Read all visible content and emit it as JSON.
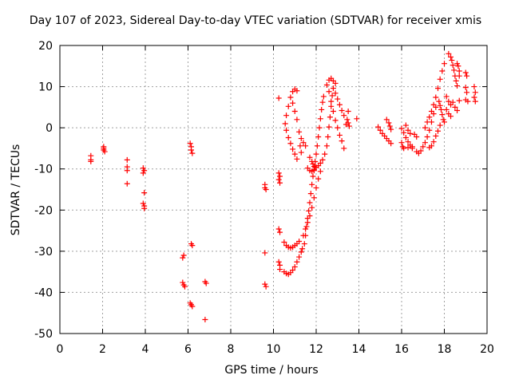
{
  "chart_data": {
    "type": "scatter",
    "title": "Day 107 of 2023, Sidereal Day-to-day VTEC variation (SDTVAR) for receiver xmis",
    "xlabel": "GPS time / hours",
    "ylabel": "SDTVAR / TECUs",
    "xlim": [
      0,
      20
    ],
    "ylim": [
      -50,
      20
    ],
    "xticks": [
      "0",
      "2",
      "4",
      "6",
      "8",
      "10",
      "12",
      "14",
      "16",
      "18",
      "20"
    ],
    "yticks": [
      "-50",
      "-40",
      "-30",
      "-20",
      "-10",
      "0",
      "10",
      "20"
    ],
    "grid": true,
    "marker": "+",
    "color": "#ff0000",
    "series": [
      {
        "name": "SDTVAR",
        "points": [
          [
            1.45,
            -6.8
          ],
          [
            1.45,
            -7.8
          ],
          [
            1.45,
            -8.2
          ],
          [
            2.05,
            -4.6
          ],
          [
            2.05,
            -5.0
          ],
          [
            2.05,
            -5.4
          ],
          [
            2.1,
            -5.8
          ],
          [
            3.15,
            -7.8
          ],
          [
            3.15,
            -9.5
          ],
          [
            3.15,
            -10.4
          ],
          [
            3.15,
            -13.6
          ],
          [
            3.9,
            -9.8
          ],
          [
            3.95,
            -10.4
          ],
          [
            3.9,
            -11.0
          ],
          [
            3.95,
            -15.8
          ],
          [
            3.9,
            -18.4
          ],
          [
            3.95,
            -19.0
          ],
          [
            3.95,
            -19.6
          ],
          [
            5.75,
            -31.6
          ],
          [
            5.8,
            -31.0
          ],
          [
            5.75,
            -37.6
          ],
          [
            5.8,
            -38.2
          ],
          [
            5.85,
            -38.6
          ],
          [
            6.1,
            -3.8
          ],
          [
            6.15,
            -4.6
          ],
          [
            6.15,
            -5.4
          ],
          [
            6.2,
            -6.2
          ],
          [
            6.15,
            -28.2
          ],
          [
            6.2,
            -28.6
          ],
          [
            6.1,
            -42.6
          ],
          [
            6.15,
            -43.0
          ],
          [
            6.2,
            -43.4
          ],
          [
            6.8,
            -37.4
          ],
          [
            6.85,
            -37.8
          ],
          [
            6.8,
            -46.6
          ],
          [
            9.6,
            -13.8
          ],
          [
            9.6,
            -14.6
          ],
          [
            9.65,
            -15.0
          ],
          [
            9.6,
            -30.4
          ],
          [
            9.6,
            -38.0
          ],
          [
            9.65,
            -38.6
          ],
          [
            10.25,
            -11.0
          ],
          [
            10.3,
            -11.8
          ],
          [
            10.25,
            -12.6
          ],
          [
            10.3,
            -13.4
          ],
          [
            10.25,
            7.2
          ],
          [
            10.25,
            -24.6
          ],
          [
            10.3,
            -25.4
          ],
          [
            10.25,
            -32.6
          ],
          [
            10.3,
            -33.4
          ],
          [
            10.3,
            -34.4
          ],
          [
            10.5,
            -35.0
          ],
          [
            10.6,
            -35.4
          ],
          [
            10.7,
            -35.6
          ],
          [
            10.8,
            -35.2
          ],
          [
            10.9,
            -34.6
          ],
          [
            11.0,
            -33.8
          ],
          [
            11.1,
            -32.6
          ],
          [
            11.2,
            -31.4
          ],
          [
            11.3,
            -30.2
          ],
          [
            11.35,
            -29.4
          ],
          [
            10.5,
            -27.8
          ],
          [
            10.6,
            -28.6
          ],
          [
            10.7,
            -29.0
          ],
          [
            10.8,
            -29.2
          ],
          [
            10.9,
            -29.0
          ],
          [
            11.0,
            -28.6
          ],
          [
            11.1,
            -28.2
          ],
          [
            11.2,
            -27.6
          ],
          [
            11.4,
            -26.2
          ],
          [
            11.5,
            -24.6
          ],
          [
            11.6,
            -23.0
          ],
          [
            11.7,
            -21.4
          ],
          [
            11.8,
            -19.4
          ],
          [
            11.9,
            -17.0
          ],
          [
            12.0,
            -14.6
          ],
          [
            12.1,
            -12.4
          ],
          [
            12.2,
            -10.6
          ],
          [
            11.45,
            -28.2
          ],
          [
            11.5,
            -26.2
          ],
          [
            11.55,
            -24.0
          ],
          [
            11.6,
            -22.0
          ],
          [
            11.65,
            -20.2
          ],
          [
            11.7,
            -18.2
          ],
          [
            11.75,
            -16.0
          ],
          [
            11.8,
            -13.8
          ],
          [
            11.85,
            -11.8
          ],
          [
            11.9,
            -10.4
          ],
          [
            11.95,
            -9.6
          ],
          [
            11.95,
            -8.2
          ],
          [
            12.0,
            -6.4
          ],
          [
            12.05,
            -4.4
          ],
          [
            12.1,
            -2.2
          ],
          [
            12.15,
            0.0
          ],
          [
            12.2,
            2.2
          ],
          [
            12.25,
            4.4
          ],
          [
            12.3,
            6.2
          ],
          [
            12.35,
            7.6
          ],
          [
            11.6,
            -9.8
          ],
          [
            11.7,
            -10.4
          ],
          [
            11.8,
            -10.6
          ],
          [
            11.9,
            -10.2
          ],
          [
            12.0,
            -9.6
          ],
          [
            12.1,
            -9.2
          ],
          [
            12.2,
            -8.6
          ],
          [
            12.3,
            -7.8
          ],
          [
            12.4,
            -6.4
          ],
          [
            12.5,
            -4.4
          ],
          [
            12.55,
            -2.2
          ],
          [
            12.6,
            0.2
          ],
          [
            12.65,
            2.6
          ],
          [
            12.7,
            5.2
          ],
          [
            12.75,
            7.8
          ],
          [
            10.55,
            1.0
          ],
          [
            10.6,
            3.0
          ],
          [
            10.7,
            5.2
          ],
          [
            10.8,
            7.4
          ],
          [
            10.9,
            8.8
          ],
          [
            11.0,
            9.4
          ],
          [
            11.1,
            9.0
          ],
          [
            10.6,
            -0.6
          ],
          [
            10.7,
            -2.4
          ],
          [
            10.8,
            -3.8
          ],
          [
            10.9,
            -5.2
          ],
          [
            11.0,
            -6.4
          ],
          [
            11.1,
            -7.6
          ],
          [
            10.9,
            6.0
          ],
          [
            11.0,
            4.0
          ],
          [
            11.1,
            2.0
          ],
          [
            11.2,
            -1.0
          ],
          [
            11.25,
            -4.4
          ],
          [
            11.3,
            -6.0
          ],
          [
            11.3,
            -2.6
          ],
          [
            11.4,
            -3.6
          ],
          [
            11.5,
            -4.4
          ],
          [
            11.7,
            -7.2
          ],
          [
            11.8,
            -8.2
          ],
          [
            11.85,
            -8.8
          ],
          [
            11.9,
            -9.4
          ],
          [
            12.5,
            10.4
          ],
          [
            12.6,
            11.6
          ],
          [
            12.7,
            12.0
          ],
          [
            12.8,
            11.4
          ],
          [
            12.9,
            10.8
          ],
          [
            12.8,
            9.6
          ],
          [
            12.9,
            8.4
          ],
          [
            13.0,
            7.0
          ],
          [
            13.1,
            5.6
          ],
          [
            13.2,
            4.2
          ],
          [
            13.3,
            3.0
          ],
          [
            12.6,
            8.8
          ],
          [
            12.7,
            6.4
          ],
          [
            12.8,
            4.0
          ],
          [
            12.9,
            1.8
          ],
          [
            13.0,
            0.0
          ],
          [
            13.1,
            -1.8
          ],
          [
            13.2,
            -3.2
          ],
          [
            13.3,
            -5.0
          ],
          [
            13.4,
            0.8
          ],
          [
            13.45,
            2.0
          ],
          [
            13.5,
            4.0
          ],
          [
            13.5,
            1.2
          ],
          [
            13.55,
            0.4
          ],
          [
            13.9,
            2.2
          ],
          [
            14.9,
            0.2
          ],
          [
            15.0,
            -0.6
          ],
          [
            15.1,
            -1.4
          ],
          [
            15.2,
            -2.0
          ],
          [
            15.3,
            -2.6
          ],
          [
            15.4,
            -3.2
          ],
          [
            15.5,
            -3.8
          ],
          [
            15.3,
            2.0
          ],
          [
            15.4,
            1.2
          ],
          [
            15.45,
            0.4
          ],
          [
            15.5,
            -0.4
          ],
          [
            16.0,
            -0.2
          ],
          [
            16.1,
            -1.2
          ],
          [
            16.2,
            -2.4
          ],
          [
            16.3,
            -3.4
          ],
          [
            16.4,
            -4.2
          ],
          [
            16.5,
            -4.6
          ],
          [
            16.0,
            -3.6
          ],
          [
            16.05,
            -4.6
          ],
          [
            16.1,
            -5.0
          ],
          [
            16.3,
            -4.8
          ],
          [
            16.5,
            -5.0
          ],
          [
            16.2,
            0.6
          ],
          [
            16.3,
            -0.6
          ],
          [
            16.4,
            -1.4
          ],
          [
            16.6,
            -1.6
          ],
          [
            16.7,
            -2.2
          ],
          [
            16.7,
            -5.8
          ],
          [
            16.8,
            -6.2
          ],
          [
            16.9,
            -5.6
          ],
          [
            17.0,
            -4.6
          ],
          [
            17.1,
            -3.6
          ],
          [
            17.2,
            -2.2
          ],
          [
            17.3,
            -0.6
          ],
          [
            17.4,
            1.4
          ],
          [
            17.5,
            3.4
          ],
          [
            17.6,
            5.0
          ],
          [
            17.1,
            0.0
          ],
          [
            17.2,
            1.4
          ],
          [
            17.3,
            2.6
          ],
          [
            17.4,
            4.0
          ],
          [
            17.5,
            5.6
          ],
          [
            17.6,
            7.4
          ],
          [
            17.7,
            9.6
          ],
          [
            17.8,
            11.8
          ],
          [
            17.9,
            13.8
          ],
          [
            18.0,
            15.6
          ],
          [
            17.75,
            6.4
          ],
          [
            17.8,
            5.4
          ],
          [
            17.85,
            4.4
          ],
          [
            17.9,
            3.2
          ],
          [
            17.95,
            2.0
          ],
          [
            18.0,
            1.4
          ],
          [
            17.8,
            0.6
          ],
          [
            17.7,
            -0.8
          ],
          [
            17.6,
            -2.0
          ],
          [
            17.5,
            -3.4
          ],
          [
            17.4,
            -4.4
          ],
          [
            17.3,
            -4.8
          ],
          [
            18.2,
            18.0
          ],
          [
            18.3,
            17.2
          ],
          [
            18.35,
            16.4
          ],
          [
            18.4,
            15.2
          ],
          [
            18.45,
            14.0
          ],
          [
            18.5,
            12.6
          ],
          [
            18.55,
            11.4
          ],
          [
            18.6,
            10.2
          ],
          [
            18.6,
            15.6
          ],
          [
            18.65,
            15.0
          ],
          [
            18.7,
            13.8
          ],
          [
            18.7,
            12.6
          ],
          [
            18.1,
            7.6
          ],
          [
            18.2,
            6.4
          ],
          [
            18.3,
            5.6
          ],
          [
            18.4,
            6.2
          ],
          [
            18.5,
            5.0
          ],
          [
            18.6,
            4.2
          ],
          [
            18.7,
            6.6
          ],
          [
            18.1,
            4.4
          ],
          [
            18.2,
            3.4
          ],
          [
            18.3,
            2.8
          ],
          [
            19.0,
            13.4
          ],
          [
            19.05,
            12.6
          ],
          [
            19.0,
            9.8
          ],
          [
            19.05,
            8.6
          ],
          [
            19.0,
            6.8
          ],
          [
            19.1,
            6.4
          ],
          [
            19.4,
            10.0
          ],
          [
            19.45,
            8.6
          ],
          [
            19.4,
            7.4
          ],
          [
            19.45,
            6.4
          ]
        ]
      }
    ]
  }
}
